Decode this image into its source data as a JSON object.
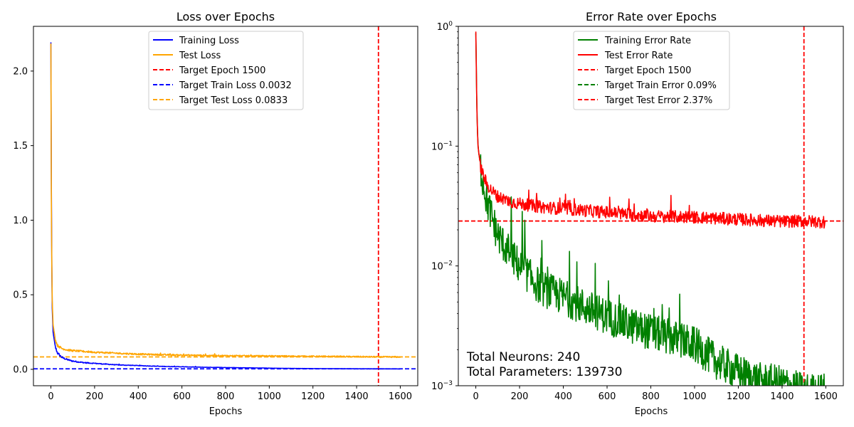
{
  "chart_data": [
    {
      "type": "line",
      "title": "Loss over Epochs",
      "xlabel": "Epochs",
      "ylabel": "",
      "xlim": [
        -80,
        1680
      ],
      "ylim": [
        -0.11,
        2.3
      ],
      "y_scale": "linear",
      "xticks": [
        "0",
        "200",
        "400",
        "600",
        "800",
        "1000",
        "1200",
        "1400",
        "1600"
      ],
      "yticks": [
        "0.0",
        "0.5",
        "1.0",
        "1.5",
        "2.0"
      ],
      "grid": false,
      "legend": "upper center",
      "series": [
        {
          "name": "Training Loss",
          "color": "#0000ff",
          "style": "solid",
          "x": [
            0,
            2,
            5,
            10,
            20,
            30,
            50,
            75,
            100,
            150,
            200,
            300,
            400,
            500,
            600,
            700,
            800,
            900,
            1000,
            1100,
            1200,
            1300,
            1400,
            1500,
            1600
          ],
          "y": [
            2.19,
            1.2,
            0.45,
            0.25,
            0.15,
            0.11,
            0.08,
            0.065,
            0.055,
            0.045,
            0.04,
            0.03,
            0.025,
            0.02,
            0.017,
            0.014,
            0.012,
            0.01,
            0.008,
            0.006,
            0.005,
            0.004,
            0.0035,
            0.0032,
            0.003
          ]
        },
        {
          "name": "Test Loss",
          "color": "#ffa500",
          "style": "solid",
          "x": [
            0,
            2,
            5,
            10,
            20,
            30,
            50,
            75,
            100,
            150,
            200,
            300,
            400,
            500,
            600,
            700,
            800,
            900,
            1000,
            1100,
            1200,
            1300,
            1400,
            1500,
            1600
          ],
          "y": [
            2.19,
            1.1,
            0.5,
            0.3,
            0.2,
            0.16,
            0.14,
            0.13,
            0.125,
            0.12,
            0.115,
            0.108,
            0.102,
            0.098,
            0.095,
            0.093,
            0.091,
            0.09,
            0.089,
            0.088,
            0.087,
            0.086,
            0.0845,
            0.0833,
            0.083
          ]
        }
      ],
      "reference_lines": [
        {
          "name": "Target Epoch 1500",
          "orientation": "vertical",
          "value": 1500,
          "color": "#ff0000",
          "style": "dashed"
        },
        {
          "name": "Target Train Loss 0.0032",
          "orientation": "horizontal",
          "value": 0.0032,
          "color": "#0000ff",
          "style": "dashed"
        },
        {
          "name": "Target Test Loss 0.0833",
          "orientation": "horizontal",
          "value": 0.0833,
          "color": "#ffa500",
          "style": "dashed"
        }
      ]
    },
    {
      "type": "line",
      "title": "Error Rate over Epochs",
      "xlabel": "Epochs",
      "ylabel": "",
      "xlim": [
        -80,
        1680
      ],
      "ylim": [
        0.001,
        1
      ],
      "y_scale": "log",
      "xticks": [
        "0",
        "200",
        "400",
        "600",
        "800",
        "1000",
        "1200",
        "1400",
        "1600"
      ],
      "yticks": [
        {
          "base": "10",
          "exp": "0",
          "value": 1
        },
        {
          "base": "10",
          "exp": "−1",
          "value": 0.1
        },
        {
          "base": "10",
          "exp": "−2",
          "value": 0.01
        },
        {
          "base": "10",
          "exp": "−3",
          "value": 0.001
        }
      ],
      "grid": false,
      "legend": "upper center",
      "series": [
        {
          "name": "Training Error Rate",
          "color": "#008000",
          "style": "solid",
          "x": [
            0,
            5,
            10,
            20,
            30,
            50,
            75,
            100,
            150,
            200,
            250,
            300,
            400,
            500,
            600,
            700,
            800,
            900,
            1000,
            1100,
            1200,
            1300,
            1400,
            1500,
            1600
          ],
          "y": [
            0.9,
            0.2,
            0.1,
            0.07,
            0.055,
            0.035,
            0.025,
            0.018,
            0.013,
            0.01,
            0.008,
            0.0065,
            0.0055,
            0.0045,
            0.0038,
            0.0032,
            0.0028,
            0.0025,
            0.0022,
            0.0016,
            0.0013,
            0.0011,
            0.00105,
            0.0009,
            0.0009
          ]
        },
        {
          "name": "Test Error Rate",
          "color": "#ff0000",
          "style": "solid",
          "x": [
            0,
            5,
            10,
            20,
            30,
            50,
            75,
            100,
            150,
            200,
            300,
            400,
            500,
            600,
            700,
            800,
            900,
            1000,
            1100,
            1200,
            1300,
            1400,
            1500,
            1600
          ],
          "y": [
            0.9,
            0.2,
            0.1,
            0.07,
            0.06,
            0.048,
            0.042,
            0.038,
            0.035,
            0.033,
            0.031,
            0.03,
            0.029,
            0.028,
            0.027,
            0.026,
            0.0258,
            0.0255,
            0.025,
            0.0245,
            0.024,
            0.0235,
            0.0237,
            0.0232
          ]
        }
      ],
      "reference_lines": [
        {
          "name": "Target Epoch 1500",
          "orientation": "vertical",
          "value": 1500,
          "color": "#ff0000",
          "style": "dashed"
        },
        {
          "name": "Target Train Error 0.09%",
          "orientation": "horizontal",
          "value": 0.0009,
          "color": "#008000",
          "style": "dashed"
        },
        {
          "name": "Target Test Error 2.37%",
          "orientation": "horizontal",
          "value": 0.0237,
          "color": "#ff0000",
          "style": "dashed"
        }
      ],
      "annotations": [
        "Total Neurons: 240",
        "Total Parameters: 139730"
      ]
    }
  ]
}
